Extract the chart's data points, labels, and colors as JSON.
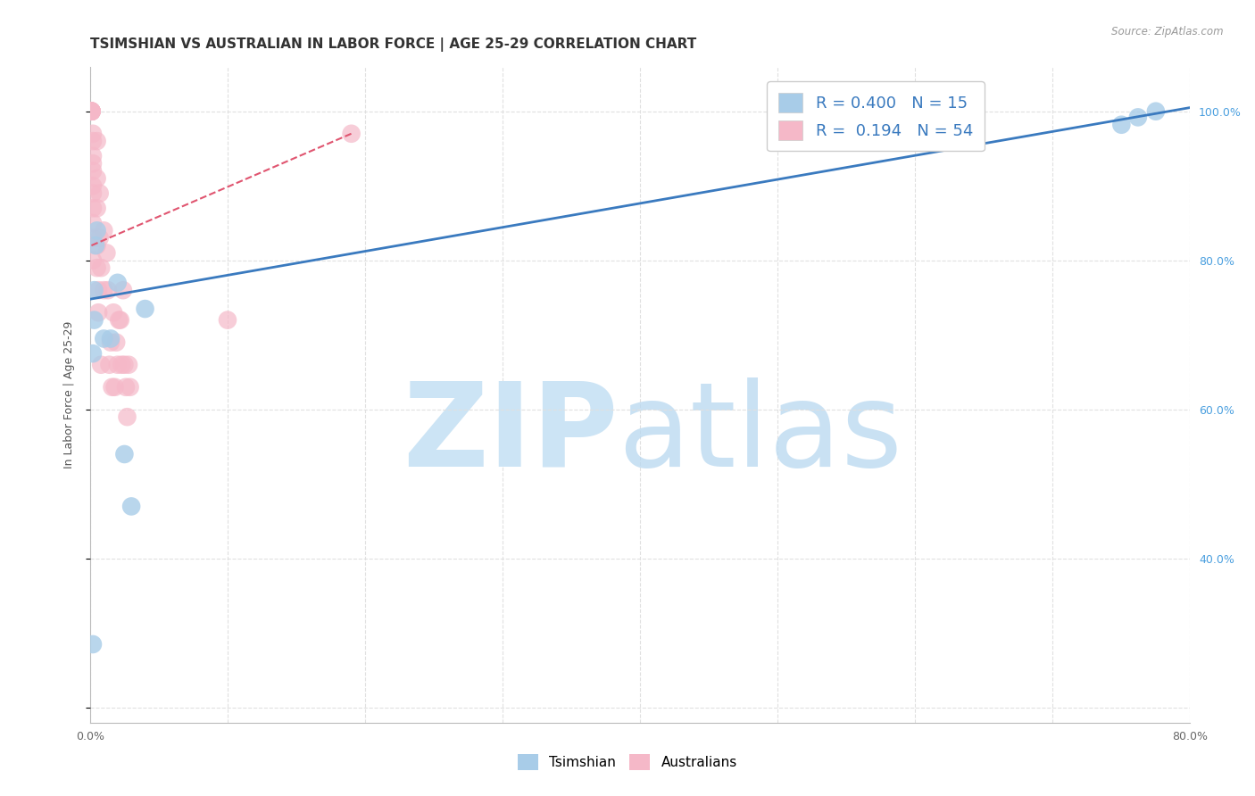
{
  "title": "TSIMSHIAN VS AUSTRALIAN IN LABOR FORCE | AGE 25-29 CORRELATION CHART",
  "source": "Source: ZipAtlas.com",
  "ylabel": "In Labor Force | Age 25-29",
  "xlim": [
    0.0,
    0.8
  ],
  "ylim": [
    0.18,
    1.06
  ],
  "xticks": [
    0.0,
    0.1,
    0.2,
    0.3,
    0.4,
    0.5,
    0.6,
    0.7,
    0.8
  ],
  "xticklabels": [
    "0.0%",
    "",
    "",
    "",
    "",
    "",
    "",
    "",
    "80.0%"
  ],
  "yticks": [
    0.2,
    0.4,
    0.6,
    0.8,
    1.0
  ],
  "tsimshian_color": "#a8cce8",
  "australian_color": "#f5b8c8",
  "tsimshian_R": 0.4,
  "tsimshian_N": 15,
  "australian_R": 0.194,
  "australian_N": 54,
  "tsimshian_line_color": "#3a7abf",
  "australian_line_color": "#e05570",
  "watermark_zip_color": "#cce4f5",
  "watermark_atlas_color": "#b8d8f0",
  "grid_color": "#e0e0e0",
  "grid_style": "--",
  "axis_color": "#bbbbbb",
  "right_ytick_color": "#4a9fdf",
  "title_fontsize": 11,
  "label_fontsize": 9,
  "tick_fontsize": 9,
  "legend_fontsize": 13,
  "tsimshian_x": [
    0.002,
    0.002,
    0.003,
    0.003,
    0.004,
    0.005,
    0.01,
    0.015,
    0.02,
    0.025,
    0.03,
    0.04,
    0.75,
    0.762,
    0.775
  ],
  "tsimshian_y": [
    0.285,
    0.675,
    0.72,
    0.76,
    0.82,
    0.84,
    0.695,
    0.695,
    0.77,
    0.54,
    0.47,
    0.735,
    0.982,
    0.992,
    1.0
  ],
  "australian_x": [
    0.001,
    0.001,
    0.001,
    0.001,
    0.001,
    0.001,
    0.001,
    0.001,
    0.001,
    0.001,
    0.002,
    0.002,
    0.002,
    0.002,
    0.002,
    0.002,
    0.002,
    0.002,
    0.002,
    0.002,
    0.002,
    0.005,
    0.005,
    0.005,
    0.005,
    0.005,
    0.006,
    0.006,
    0.007,
    0.007,
    0.008,
    0.008,
    0.01,
    0.01,
    0.012,
    0.013,
    0.014,
    0.015,
    0.016,
    0.017,
    0.018,
    0.019,
    0.02,
    0.021,
    0.022,
    0.023,
    0.024,
    0.025,
    0.026,
    0.027,
    0.028,
    0.029,
    0.1,
    0.19
  ],
  "australian_y": [
    1.0,
    1.0,
    1.0,
    1.0,
    1.0,
    1.0,
    1.0,
    1.0,
    1.0,
    1.0,
    0.97,
    0.96,
    0.94,
    0.93,
    0.92,
    0.9,
    0.89,
    0.87,
    0.85,
    0.83,
    0.8,
    0.96,
    0.91,
    0.87,
    0.82,
    0.79,
    0.76,
    0.73,
    0.89,
    0.83,
    0.79,
    0.66,
    0.84,
    0.76,
    0.81,
    0.76,
    0.66,
    0.69,
    0.63,
    0.73,
    0.63,
    0.69,
    0.66,
    0.72,
    0.72,
    0.66,
    0.76,
    0.66,
    0.63,
    0.59,
    0.66,
    0.63,
    0.72,
    0.97
  ],
  "ts_line_x0": 0.0,
  "ts_line_x1": 0.8,
  "ts_line_y0": 0.748,
  "ts_line_y1": 1.005,
  "au_line_x0": 0.001,
  "au_line_x1": 0.19,
  "au_line_y0": 0.82,
  "au_line_y1": 0.97
}
